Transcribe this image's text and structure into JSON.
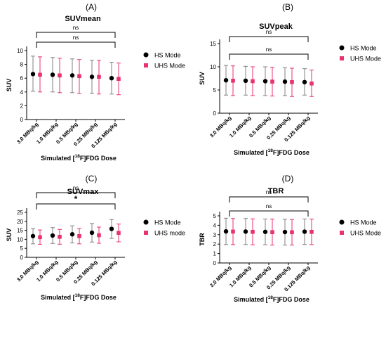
{
  "figure": {
    "legend_marker_colors": {
      "hs": "#000000",
      "uhs": "#e8336f"
    },
    "error_bar_colors": {
      "hs": "#808080",
      "uhs": "#e8336f"
    }
  },
  "chart_data": [
    {
      "panel_label": "(A)",
      "type": "scatter",
      "title": "SUVmean",
      "ylabel": "SUV",
      "xlabel_parts": {
        "pre": "Simulated [",
        "sup": "18",
        "post": "F]FDG Dose"
      },
      "ylim": [
        0,
        10
      ],
      "yticks": [
        0,
        2,
        4,
        6,
        8,
        10
      ],
      "categories": [
        "3.0 MBq/kg",
        "1.0 MBq/kg",
        "0.5 MBq/kg",
        "0.25 MBq/kg",
        "0.125 MBq/kg"
      ],
      "series": [
        {
          "name": "HS Mode",
          "marker": "circle",
          "color": "#000000",
          "bar_color": "#808080",
          "values": [
            6.6,
            6.5,
            6.4,
            6.2,
            6.0
          ],
          "lower": [
            4.1,
            4.0,
            3.9,
            3.8,
            3.7
          ],
          "upper": [
            9.2,
            9.0,
            8.8,
            8.6,
            8.3
          ]
        },
        {
          "name": "UHS Mode",
          "marker": "square",
          "color": "#e8336f",
          "bar_color": "#e8336f",
          "values": [
            6.5,
            6.4,
            6.3,
            6.2,
            5.9
          ],
          "lower": [
            4.0,
            3.9,
            3.8,
            3.7,
            3.6
          ],
          "upper": [
            9.1,
            8.9,
            8.7,
            8.6,
            8.2
          ]
        }
      ],
      "brackets": [
        {
          "from": 0,
          "to": 4,
          "label": "ns"
        },
        {
          "from": 0,
          "to": 4,
          "label": "ns"
        }
      ],
      "legend_position": "right",
      "grid": false
    },
    {
      "panel_label": "(B)",
      "type": "scatter",
      "title": "SUVpeak",
      "ylabel": "SUV",
      "xlabel_parts": {
        "pre": "Simulated [",
        "sup": "18",
        "post": "F]FDG Dose"
      },
      "ylim": [
        0,
        15
      ],
      "yticks": [
        0,
        5,
        10,
        15
      ],
      "categories": [
        "3.0 MBq/kg",
        "1.0 MBq/kg",
        "0.5 MBq/kg",
        "0.25 MBq/kg",
        "0.125 MBq/kg"
      ],
      "series": [
        {
          "name": "HS Mode",
          "marker": "circle",
          "color": "#000000",
          "bar_color": "#808080",
          "values": [
            7.1,
            7.0,
            6.9,
            6.8,
            6.7
          ],
          "lower": [
            3.9,
            3.9,
            3.8,
            3.8,
            3.9
          ],
          "upper": [
            10.3,
            10.1,
            10.0,
            9.8,
            9.6
          ]
        },
        {
          "name": "UHS Mode",
          "marker": "square",
          "color": "#e8336f",
          "bar_color": "#e8336f",
          "values": [
            7.0,
            6.9,
            6.8,
            6.7,
            6.4
          ],
          "lower": [
            3.8,
            3.8,
            3.7,
            3.6,
            3.6
          ],
          "upper": [
            10.2,
            10.0,
            9.9,
            9.7,
            9.3
          ]
        }
      ],
      "brackets": [
        {
          "from": 0,
          "to": 4,
          "label": "ns"
        },
        {
          "from": 0,
          "to": 4,
          "label": "ns"
        }
      ],
      "legend_position": "right",
      "grid": false
    },
    {
      "panel_label": "(C)",
      "type": "scatter",
      "title": "SUVmax",
      "ylabel": "SUV",
      "xlabel_parts": {
        "pre": "Simulated [",
        "sup": "18",
        "post": "F]FDG Dose"
      },
      "ylim": [
        0,
        25
      ],
      "yticks": [
        0,
        5,
        10,
        15,
        20,
        25
      ],
      "categories": [
        "3.0 MBq/kg",
        "1.0 MBq/kg",
        "0.5 MBq/kg",
        "0.25 MBq/kg",
        "0.125 MBq/kg"
      ],
      "series": [
        {
          "name": "HS Mode",
          "marker": "circle",
          "color": "#000000",
          "bar_color": "#808080",
          "values": [
            11.8,
            12.1,
            12.8,
            13.7,
            15.8
          ],
          "lower": [
            7.5,
            7.7,
            8.0,
            8.5,
            10.5
          ],
          "upper": [
            16.0,
            16.5,
            17.5,
            18.8,
            21.0
          ]
        },
        {
          "name": "UHS mode",
          "marker": "square",
          "color": "#e8336f",
          "bar_color": "#e8336f",
          "values": [
            11.2,
            11.4,
            11.8,
            12.3,
            13.6
          ],
          "lower": [
            7.2,
            7.3,
            7.5,
            7.8,
            8.6
          ],
          "upper": [
            15.2,
            15.5,
            16.0,
            16.8,
            18.5
          ]
        }
      ],
      "brackets": [
        {
          "from": 0,
          "to": 4,
          "label": "*"
        },
        {
          "from": 0,
          "to": 4,
          "label": "ns"
        }
      ],
      "legend_position": "right",
      "grid": false
    },
    {
      "panel_label": "(D)",
      "type": "scatter",
      "title": "TBR",
      "ylabel": "TBR",
      "xlabel_parts": {
        "pre": "Simulated [",
        "sup": "18",
        "post": "F]FDG Dose"
      },
      "ylim": [
        0,
        5
      ],
      "yticks": [
        0,
        1,
        2,
        3,
        4,
        5
      ],
      "categories": [
        "3.0 MBq/kg",
        "1.0 MBq/kg",
        "0.5 MBq/kg",
        "0.25 MBq/kg",
        "0.125 MBq/kg"
      ],
      "series": [
        {
          "name": "HS Mode",
          "marker": "circle",
          "color": "#000000",
          "bar_color": "#808080",
          "values": [
            3.35,
            3.33,
            3.3,
            3.28,
            3.32
          ],
          "lower": [
            1.95,
            1.95,
            1.93,
            1.9,
            1.97
          ],
          "upper": [
            4.75,
            4.72,
            4.67,
            4.63,
            4.67
          ]
        },
        {
          "name": "UHS Mode",
          "marker": "square",
          "color": "#e8336f",
          "bar_color": "#e8336f",
          "values": [
            3.33,
            3.3,
            3.27,
            3.26,
            3.3
          ],
          "lower": [
            1.95,
            1.93,
            1.9,
            1.9,
            1.95
          ],
          "upper": [
            4.72,
            4.68,
            4.65,
            4.62,
            4.65
          ]
        }
      ],
      "brackets": [
        {
          "from": 0,
          "to": 4,
          "label": "ns"
        },
        {
          "from": 0,
          "to": 4,
          "label": "ns"
        }
      ],
      "legend_position": "right",
      "grid": false
    }
  ]
}
